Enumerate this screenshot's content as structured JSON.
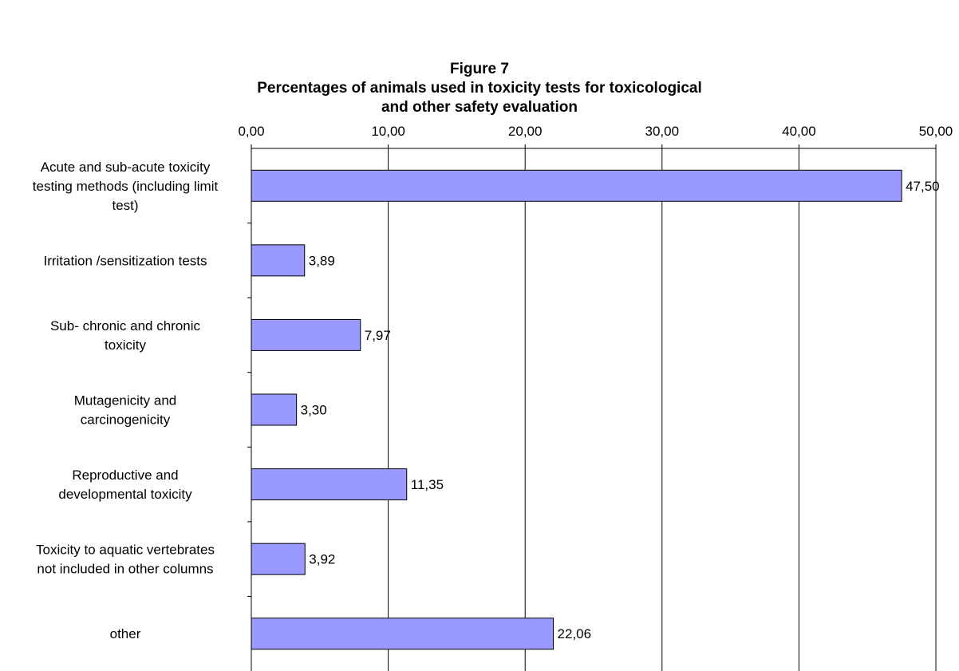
{
  "figure_label": "Figure 7",
  "title_line1": "Percentages of animals used in toxicity tests for toxicological",
  "title_line2": "and other safety evaluation",
  "colors": {
    "bar_fill": "#9999ff",
    "bar_stroke": "#000000",
    "grid": "#000000"
  },
  "chart_data": {
    "type": "bar",
    "orientation": "horizontal",
    "title": "Percentages of animals used in toxicity tests for toxicological and other safety evaluation",
    "categories": [
      [
        "Acute and sub-acute toxicity",
        "testing methods (including limit",
        "test)"
      ],
      [
        "Irritation /sensitization tests"
      ],
      [
        "Sub- chronic and chronic",
        "toxicity"
      ],
      [
        "Mutagenicity and",
        "carcinogenicity"
      ],
      [
        "Reproductive and",
        "developmental toxicity"
      ],
      [
        "Toxicity to aquatic vertebrates",
        "not included in other columns"
      ],
      [
        "other"
      ]
    ],
    "values": [
      47.5,
      3.89,
      7.97,
      3.3,
      11.35,
      3.92,
      22.06
    ],
    "value_labels": [
      "47,50",
      "3,89",
      "7,97",
      "3,30",
      "11,35",
      "3,92",
      "22,06"
    ],
    "xlim": [
      0,
      50
    ],
    "ticks": [
      0,
      10,
      20,
      30,
      40,
      50
    ],
    "tick_labels": [
      "0,00",
      "10,00",
      "20,00",
      "30,00",
      "40,00",
      "50,00"
    ],
    "axis_position": "top",
    "grid": true,
    "legend": "none"
  }
}
